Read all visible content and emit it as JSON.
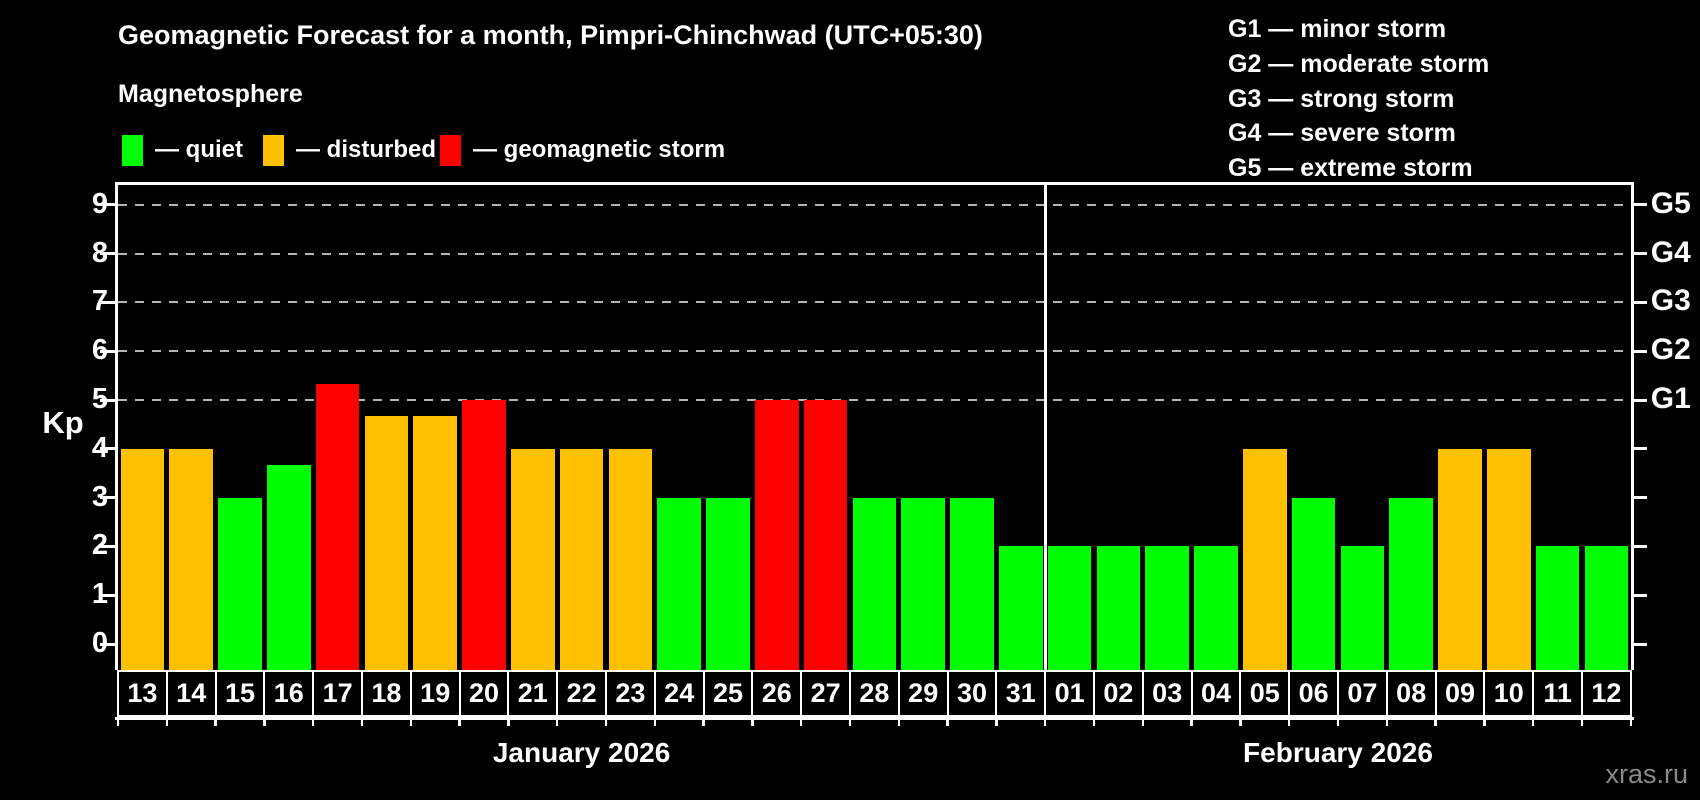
{
  "header": {
    "title": "Geomagnetic Forecast for a month, Pimpri-Chinchwad (UTC+05:30)",
    "subtitle": "Magnetosphere"
  },
  "legend": {
    "items": [
      {
        "label": "— quiet",
        "status": "quiet"
      },
      {
        "label": "— disturbed",
        "status": "disturbed"
      },
      {
        "label": "— geomagnetic storm",
        "status": "storm"
      }
    ]
  },
  "g_legend": [
    "G1 — minor storm",
    "G2 — moderate storm",
    "G3 — strong storm",
    "G4 — severe storm",
    "G5 — extreme storm"
  ],
  "watermark": "xras.ru",
  "colors": {
    "quiet": "#00FF00",
    "disturbed": "#FFC000",
    "storm": "#FF0000",
    "axis": "#FFFFFF",
    "grid": "#B4B4B4",
    "watermark": "#8A8A8A",
    "background": "#000000"
  },
  "chart_data": {
    "type": "bar",
    "ylabel": "Kp",
    "ylim": [
      0,
      9
    ],
    "y_ticks": [
      0,
      1,
      2,
      3,
      4,
      5,
      6,
      7,
      8,
      9
    ],
    "grid": "dashed horizontal at G-storm levels only",
    "g_levels": [
      {
        "label": "G1",
        "kp": 5
      },
      {
        "label": "G2",
        "kp": 6
      },
      {
        "label": "G3",
        "kp": 7
      },
      {
        "label": "G4",
        "kp": 8
      },
      {
        "label": "G5",
        "kp": 9
      }
    ],
    "months": [
      {
        "label": "January 2026",
        "days": [
          {
            "day": "13",
            "kp": 4.0,
            "status": "disturbed"
          },
          {
            "day": "14",
            "kp": 4.0,
            "status": "disturbed"
          },
          {
            "day": "15",
            "kp": 3.0,
            "status": "quiet"
          },
          {
            "day": "16",
            "kp": 3.67,
            "status": "quiet"
          },
          {
            "day": "17",
            "kp": 5.33,
            "status": "storm"
          },
          {
            "day": "18",
            "kp": 4.67,
            "status": "disturbed"
          },
          {
            "day": "19",
            "kp": 4.67,
            "status": "disturbed"
          },
          {
            "day": "20",
            "kp": 5.0,
            "status": "storm"
          },
          {
            "day": "21",
            "kp": 4.0,
            "status": "disturbed"
          },
          {
            "day": "22",
            "kp": 4.0,
            "status": "disturbed"
          },
          {
            "day": "23",
            "kp": 4.0,
            "status": "disturbed"
          },
          {
            "day": "24",
            "kp": 3.0,
            "status": "quiet"
          },
          {
            "day": "25",
            "kp": 3.0,
            "status": "quiet"
          },
          {
            "day": "26",
            "kp": 5.0,
            "status": "storm"
          },
          {
            "day": "27",
            "kp": 5.0,
            "status": "storm"
          },
          {
            "day": "28",
            "kp": 3.0,
            "status": "quiet"
          },
          {
            "day": "29",
            "kp": 3.0,
            "status": "quiet"
          },
          {
            "day": "30",
            "kp": 3.0,
            "status": "quiet"
          },
          {
            "day": "31",
            "kp": 2.0,
            "status": "quiet"
          }
        ]
      },
      {
        "label": "February 2026",
        "days": [
          {
            "day": "01",
            "kp": 2.0,
            "status": "quiet"
          },
          {
            "day": "02",
            "kp": 2.0,
            "status": "quiet"
          },
          {
            "day": "03",
            "kp": 2.0,
            "status": "quiet"
          },
          {
            "day": "04",
            "kp": 2.0,
            "status": "quiet"
          },
          {
            "day": "05",
            "kp": 4.0,
            "status": "disturbed"
          },
          {
            "day": "06",
            "kp": 3.0,
            "status": "quiet"
          },
          {
            "day": "07",
            "kp": 2.0,
            "status": "quiet"
          },
          {
            "day": "08",
            "kp": 3.0,
            "status": "quiet"
          },
          {
            "day": "09",
            "kp": 4.0,
            "status": "disturbed"
          },
          {
            "day": "10",
            "kp": 4.0,
            "status": "disturbed"
          },
          {
            "day": "11",
            "kp": 2.0,
            "status": "quiet"
          },
          {
            "day": "12",
            "kp": 2.0,
            "status": "quiet"
          }
        ]
      }
    ]
  }
}
